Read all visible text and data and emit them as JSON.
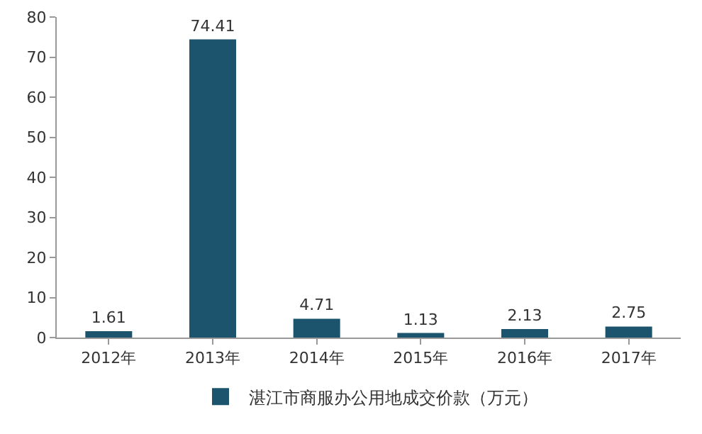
{
  "chart_data": {
    "type": "bar",
    "categories": [
      "2012年",
      "2013年",
      "2014年",
      "2015年",
      "2016年",
      "2017年"
    ],
    "series": [
      {
        "name": "湛江市商服办公用地成交价款（万元）",
        "color": "#1b546c",
        "values": [
          1.61,
          74.41,
          4.71,
          1.13,
          2.13,
          2.75
        ]
      }
    ],
    "ylim": [
      0,
      80
    ],
    "yticks": [
      0,
      10,
      20,
      30,
      40,
      50,
      60,
      70,
      80
    ],
    "data_labels": true,
    "grid": false,
    "legend": "bottom"
  }
}
